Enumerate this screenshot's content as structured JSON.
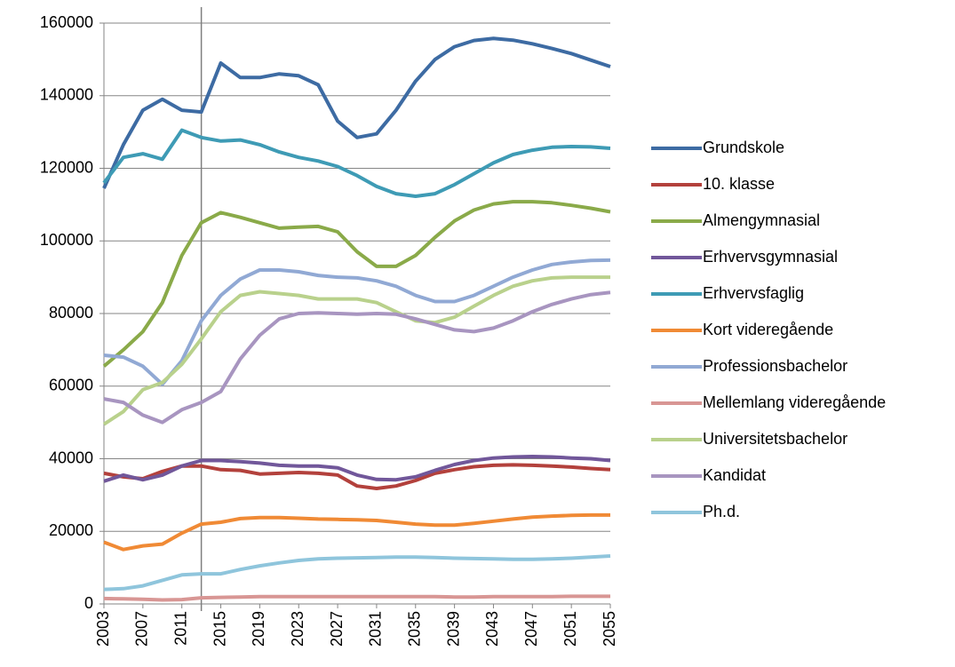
{
  "chart_data": {
    "type": "line",
    "x": [
      2003,
      2005,
      2007,
      2009,
      2011,
      2013,
      2015,
      2017,
      2019,
      2021,
      2023,
      2025,
      2027,
      2029,
      2031,
      2033,
      2035,
      2037,
      2039,
      2041,
      2043,
      2045,
      2047,
      2049,
      2051,
      2053,
      2055
    ],
    "xlim": [
      2003,
      2055
    ],
    "xticks": [
      2003,
      2007,
      2011,
      2015,
      2019,
      2023,
      2027,
      2031,
      2035,
      2039,
      2043,
      2047,
      2051,
      2055
    ],
    "ylim": [
      0,
      160000
    ],
    "yticks": [
      0,
      20000,
      40000,
      60000,
      80000,
      100000,
      120000,
      140000,
      160000
    ],
    "grid": true,
    "vline": 2013,
    "legend": "right",
    "series": [
      {
        "name": "Grundskole",
        "color": "#3d6ba3",
        "values": [
          114500,
          126500,
          136000,
          139000,
          136000,
          135500,
          149000,
          145000,
          145000,
          146000,
          145500,
          143000,
          133000,
          128500,
          129500,
          136000,
          144000,
          150000,
          153500,
          155200,
          155800,
          155300,
          154300,
          153000,
          151600,
          149800,
          148000
        ]
      },
      {
        "name": "10. klasse",
        "color": "#b3413c",
        "values": [
          36000,
          35000,
          34500,
          36500,
          38000,
          38000,
          37000,
          36800,
          35800,
          36000,
          36200,
          36000,
          35500,
          32500,
          31800,
          32500,
          34000,
          36000,
          37000,
          37800,
          38200,
          38300,
          38200,
          38000,
          37700,
          37300,
          37000
        ]
      },
      {
        "name": "Almengymnasial",
        "color": "#8aaa49",
        "values": [
          65500,
          70000,
          75000,
          83000,
          96000,
          105000,
          107800,
          106500,
          105000,
          103500,
          103800,
          104000,
          102500,
          97000,
          93000,
          93000,
          96000,
          101000,
          105500,
          108500,
          110200,
          110800,
          110800,
          110500,
          109800,
          109000,
          108000
        ]
      },
      {
        "name": "Erhvervsgymnasial",
        "color": "#71579a",
        "values": [
          33800,
          35500,
          34200,
          35500,
          38000,
          39500,
          39500,
          39200,
          38800,
          38200,
          38000,
          38000,
          37500,
          35500,
          34300,
          34200,
          35000,
          36800,
          38400,
          39500,
          40200,
          40500,
          40600,
          40500,
          40200,
          40000,
          39500
        ]
      },
      {
        "name": "Erhvervsfaglig",
        "color": "#3e9bb5",
        "values": [
          116000,
          123000,
          124000,
          122500,
          130500,
          128500,
          127500,
          127800,
          126500,
          124500,
          123000,
          122000,
          120500,
          118000,
          115000,
          113000,
          112300,
          113000,
          115500,
          118500,
          121500,
          123800,
          125000,
          125800,
          126000,
          125900,
          125500
        ]
      },
      {
        "name": "Kort videregående",
        "color": "#f08a35",
        "values": [
          17000,
          15000,
          16000,
          16500,
          19500,
          22000,
          22500,
          23500,
          23800,
          23800,
          23600,
          23400,
          23300,
          23200,
          23000,
          22500,
          22000,
          21700,
          21700,
          22200,
          22800,
          23400,
          23900,
          24200,
          24400,
          24500,
          24500
        ]
      },
      {
        "name": "Professionsbachelor",
        "color": "#91a9d4",
        "values": [
          68500,
          68000,
          65500,
          60500,
          67000,
          78000,
          85000,
          89500,
          92000,
          92000,
          91500,
          90500,
          90000,
          89800,
          89000,
          87500,
          85000,
          83300,
          83300,
          85000,
          87500,
          90000,
          92000,
          93500,
          94200,
          94600,
          94700
        ]
      },
      {
        "name": "Mellemlang videregående",
        "color": "#d89694",
        "values": [
          1500,
          1400,
          1300,
          1100,
          1200,
          1700,
          1800,
          1900,
          2000,
          2000,
          2000,
          2000,
          2000,
          2000,
          2000,
          2000,
          2000,
          2000,
          1900,
          1900,
          2000,
          2000,
          2000,
          2000,
          2100,
          2100,
          2100
        ]
      },
      {
        "name": "Universitetsbachelor",
        "color": "#b9d18c",
        "values": [
          49500,
          53000,
          59000,
          61000,
          66000,
          73000,
          80500,
          85000,
          86000,
          85500,
          85000,
          84000,
          84000,
          84000,
          83000,
          80500,
          78000,
          77500,
          79000,
          82000,
          85000,
          87500,
          89000,
          89800,
          90000,
          90000,
          90000
        ]
      },
      {
        "name": "Kandidat",
        "color": "#a895c0",
        "values": [
          56500,
          55500,
          52000,
          50000,
          53500,
          55500,
          58500,
          67500,
          74000,
          78500,
          80000,
          80200,
          80000,
          79800,
          80000,
          79800,
          78500,
          77000,
          75500,
          75000,
          76000,
          78000,
          80500,
          82500,
          84000,
          85200,
          85800
        ]
      },
      {
        "name": "Ph.d.",
        "color": "#8fc5dc",
        "values": [
          4000,
          4200,
          5000,
          6500,
          8000,
          8300,
          8300,
          9500,
          10500,
          11300,
          12000,
          12400,
          12600,
          12700,
          12800,
          12900,
          12900,
          12800,
          12600,
          12500,
          12400,
          12300,
          12300,
          12400,
          12600,
          12900,
          13200
        ]
      }
    ]
  }
}
